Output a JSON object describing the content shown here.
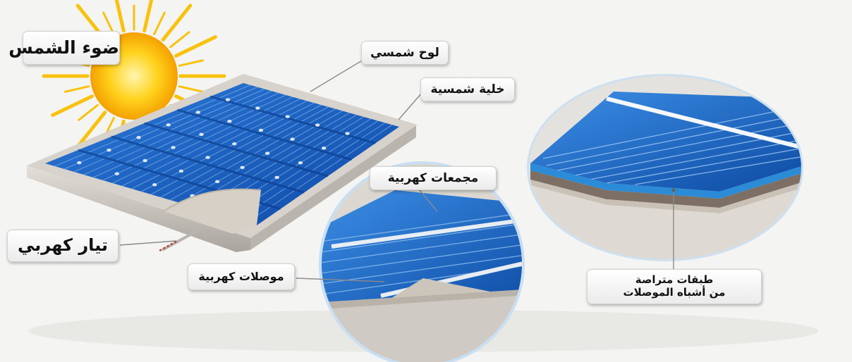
{
  "diagram": {
    "labels": {
      "sunlight": "ضوء الشمس",
      "solar_panel": "لوح شمسي",
      "solar_cell": "خلية شمسية",
      "electric_collectors": "مجمعات كهربية",
      "electric_current": "تيار كهربي",
      "electric_connectors": "موصلات كهربية",
      "layers_line1": "طبقات متراصة",
      "layers_line2": "من أشباه الموصلات"
    },
    "colors": {
      "sun_core": "#f4a800",
      "sun_rays": "#f8c20e",
      "cell_blue": "#1e63c2",
      "cell_dark": "#0f3f8f",
      "frame": "#cfcac3",
      "wire": "#c0392b"
    }
  }
}
